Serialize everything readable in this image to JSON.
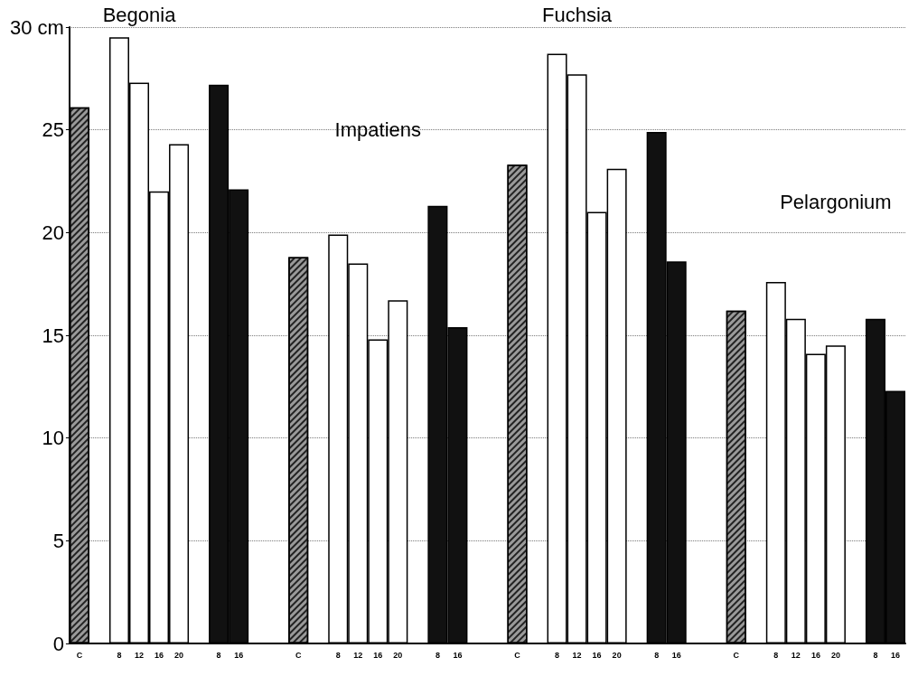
{
  "chart_data": {
    "type": "bar",
    "categories": [
      "C",
      null,
      "8",
      "12",
      "16",
      "20",
      null,
      "8",
      "16",
      null,
      null,
      "C",
      null,
      "8",
      "12",
      "16",
      "20",
      null,
      "8",
      "16",
      null,
      null,
      "C",
      null,
      "8",
      "12",
      "16",
      "20",
      null,
      "8",
      "16",
      null,
      null,
      "C",
      null,
      "8",
      "12",
      "16",
      "20",
      null,
      "8",
      "16"
    ],
    "series": [
      {
        "color": "#9a9a9a",
        "values": [
          26.1,
          null,
          null,
          null,
          null,
          null,
          null,
          null,
          null,
          null,
          null,
          18.8,
          null,
          null,
          null,
          null,
          null,
          null,
          null,
          null,
          null,
          null,
          23.3,
          null,
          null,
          null,
          null,
          null,
          null,
          null,
          null,
          null,
          null,
          16.2,
          null,
          null,
          null,
          null,
          null,
          null,
          null,
          null
        ]
      },
      {
        "color": "#ffffff",
        "values": [
          null,
          null,
          29.5,
          27.3,
          22.0,
          24.3,
          null,
          null,
          null,
          null,
          null,
          null,
          null,
          19.9,
          18.5,
          14.8,
          16.7,
          null,
          null,
          null,
          null,
          null,
          null,
          null,
          28.7,
          27.7,
          21.0,
          23.1,
          null,
          null,
          null,
          null,
          null,
          null,
          null,
          17.6,
          15.8,
          14.1,
          14.5,
          null,
          null,
          null
        ]
      },
      {
        "color": "#111111",
        "values": [
          null,
          null,
          null,
          null,
          null,
          null,
          null,
          27.2,
          22.1,
          null,
          null,
          null,
          null,
          null,
          null,
          null,
          null,
          null,
          21.3,
          15.4,
          null,
          null,
          null,
          null,
          null,
          null,
          null,
          null,
          null,
          24.9,
          18.6,
          null,
          null,
          null,
          null,
          null,
          null,
          null,
          null,
          null,
          15.8,
          12.3
        ]
      }
    ],
    "ylim": [
      0,
      30
    ],
    "yticks": [
      0,
      5,
      10,
      15,
      20,
      25,
      {
        "value": 30,
        "label": "30 cm"
      }
    ],
    "grid": "y",
    "annotations": [
      "Begonia",
      "Impatiens",
      "Fuchsia",
      "Pelargonium"
    ]
  }
}
